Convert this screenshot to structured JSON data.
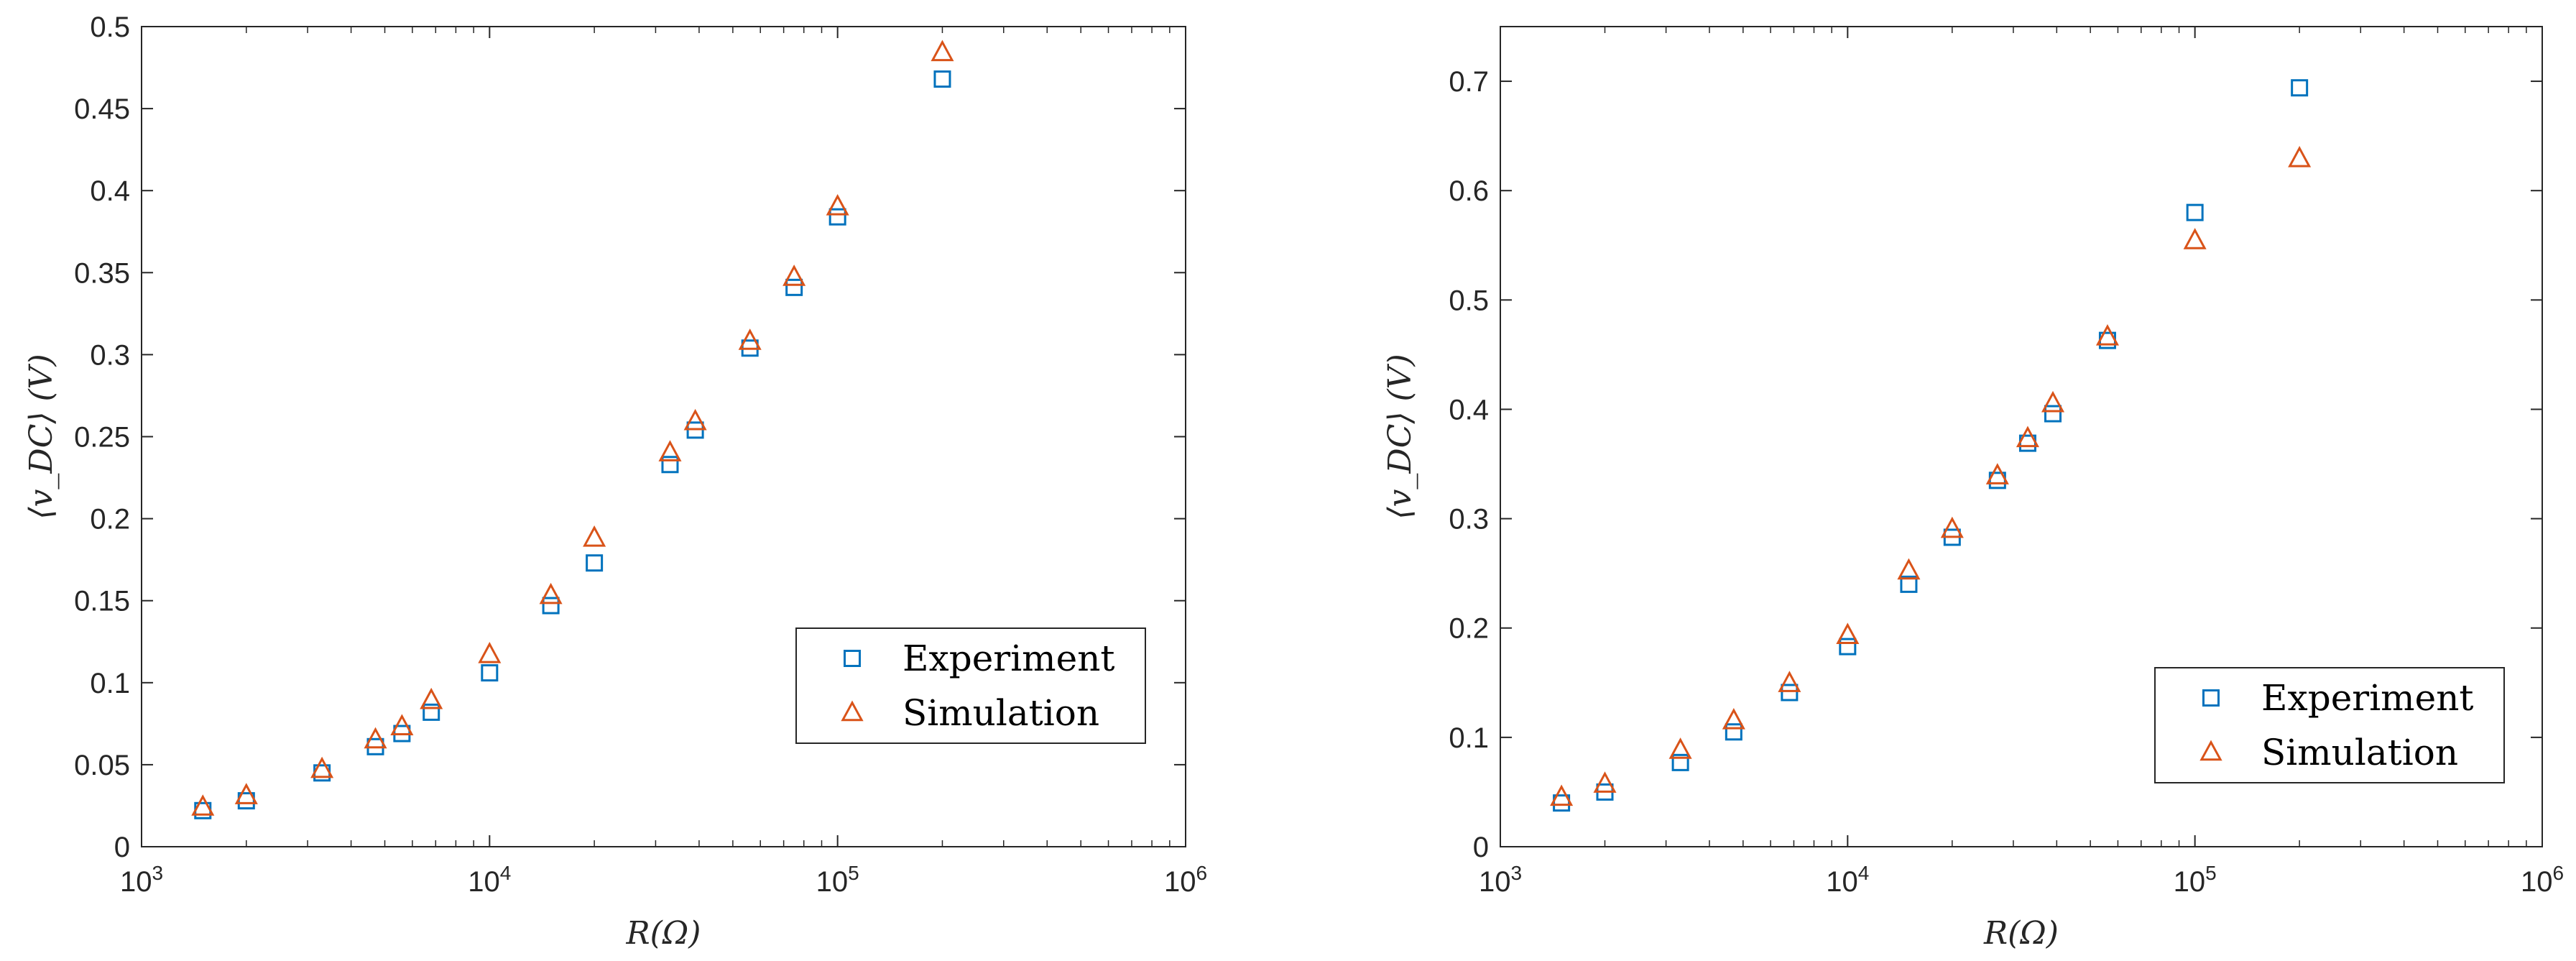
{
  "chart_data": [
    {
      "type": "scatter",
      "xscale": "log",
      "xlim": [
        1000,
        1000000
      ],
      "ylim": [
        0,
        0.5
      ],
      "xlabel": "R(Ω)",
      "ylabel": "⟨v_DC⟩ (V)",
      "xticks": [
        "10^3",
        "10^4",
        "10^5",
        "10^6"
      ],
      "yticks": [
        "0",
        "0.05",
        "0.1",
        "0.15",
        "0.2",
        "0.25",
        "0.3",
        "0.35",
        "0.4",
        "0.45",
        "0.5"
      ],
      "legend_position": "bottom-right",
      "series": [
        {
          "name": "Experiment",
          "marker": "square",
          "color": "#0072BD",
          "x": [
            1500,
            2000,
            3300,
            4700,
            5600,
            6800,
            10000,
            15000,
            20000,
            33000,
            39000,
            56000,
            75000,
            100000,
            200000
          ],
          "y": [
            0.022,
            0.028,
            0.045,
            0.061,
            0.069,
            0.082,
            0.106,
            0.147,
            0.173,
            0.233,
            0.254,
            0.304,
            0.341,
            0.384,
            0.468
          ]
        },
        {
          "name": "Simulation",
          "marker": "triangle",
          "color": "#D95319",
          "x": [
            1500,
            2000,
            3300,
            4700,
            5600,
            6800,
            10000,
            15000,
            20000,
            33000,
            39000,
            56000,
            75000,
            100000,
            200000
          ],
          "y": [
            0.024,
            0.031,
            0.047,
            0.065,
            0.073,
            0.089,
            0.117,
            0.153,
            0.188,
            0.24,
            0.259,
            0.308,
            0.347,
            0.39,
            0.484
          ]
        }
      ]
    },
    {
      "type": "scatter",
      "xscale": "log",
      "xlim": [
        1000,
        1000000
      ],
      "ylim": [
        0,
        0.75
      ],
      "xlabel": "R(Ω)",
      "ylabel": "⟨v_DC⟩ (V)",
      "xticks": [
        "10^3",
        "10^4",
        "10^5",
        "10^6"
      ],
      "yticks": [
        "0",
        "0.1",
        "0.2",
        "0.3",
        "0.4",
        "0.5",
        "0.6",
        "0.7"
      ],
      "legend_position": "bottom-right",
      "series": [
        {
          "name": "Experiment",
          "marker": "square",
          "color": "#0072BD",
          "x": [
            1500,
            2000,
            3300,
            4700,
            6800,
            10000,
            15000,
            20000,
            27000,
            33000,
            39000,
            56000,
            100000,
            200000
          ],
          "y": [
            0.04,
            0.05,
            0.077,
            0.105,
            0.141,
            0.183,
            0.24,
            0.283,
            0.335,
            0.369,
            0.396,
            0.463,
            0.58,
            0.694
          ]
        },
        {
          "name": "Simulation",
          "marker": "triangle",
          "color": "#D95319",
          "x": [
            1500,
            2000,
            3300,
            4700,
            6800,
            10000,
            15000,
            20000,
            27000,
            33000,
            39000,
            56000,
            100000,
            200000
          ],
          "y": [
            0.045,
            0.057,
            0.088,
            0.115,
            0.149,
            0.193,
            0.252,
            0.29,
            0.339,
            0.373,
            0.405,
            0.466,
            0.554,
            0.629
          ]
        }
      ]
    }
  ]
}
